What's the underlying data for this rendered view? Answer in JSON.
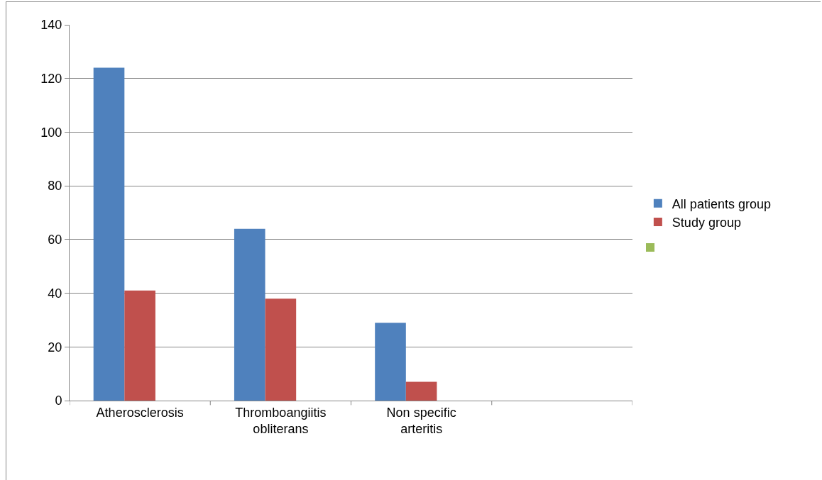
{
  "chart_data": {
    "type": "bar",
    "categories": [
      "Atherosclerosis",
      "Thromboangiitis obliterans",
      "Non specific arteritis",
      null
    ],
    "series": [
      {
        "name": "All patients group",
        "color": "#4f81bd",
        "values": [
          124,
          64,
          29,
          null
        ]
      },
      {
        "name": "Study group",
        "color": "#c0504d",
        "values": [
          41,
          38,
          7,
          null
        ]
      },
      {
        "color": "#9bbb59",
        "values": [
          null,
          null,
          null,
          null
        ]
      }
    ],
    "ylim": [
      0,
      140
    ],
    "yticks": [
      0,
      20,
      40,
      60,
      80,
      100,
      120,
      140
    ],
    "grid": "y",
    "legend": "right"
  }
}
